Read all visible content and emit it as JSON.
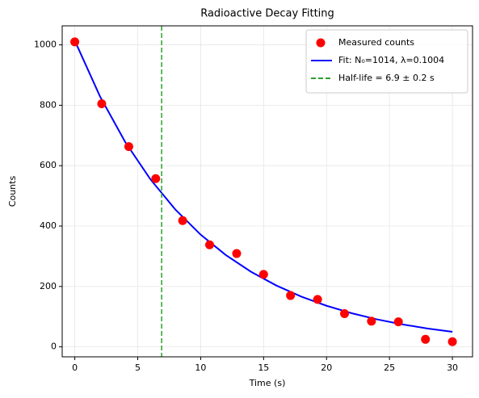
{
  "chart_data": {
    "type": "scatter",
    "title": "Radioactive Decay Fitting",
    "x_label": "Time (s)",
    "y_label": "Counts",
    "xlim": [
      -1,
      31.6
    ],
    "ylim": [
      -33,
      1063
    ],
    "xticks": [
      0,
      5,
      10,
      15,
      20,
      25,
      30
    ],
    "yticks": [
      0,
      200,
      400,
      600,
      800,
      1000
    ],
    "grid": true,
    "legend": "upper right",
    "series": [
      {
        "name": "Measured counts",
        "type": "scatter",
        "color": "#ff0000",
        "x": [
          0,
          2.14,
          4.29,
          6.43,
          8.57,
          10.71,
          12.86,
          15,
          17.14,
          19.29,
          21.43,
          23.57,
          25.71,
          27.86,
          30
        ],
        "values": [
          1010,
          805,
          663,
          557,
          418,
          338,
          309,
          240,
          170,
          157,
          110,
          85,
          83,
          25,
          17
        ]
      },
      {
        "name": "Fit: N₀=1014, λ=0.1004",
        "type": "line",
        "color": "#0000ff",
        "x": [
          0,
          2,
          4,
          6,
          8,
          10,
          12,
          14,
          16,
          18,
          20,
          22,
          24,
          26,
          28,
          30
        ],
        "values": [
          1014,
          829.6,
          678.7,
          555.2,
          454.2,
          371.5,
          304.0,
          248.7,
          203.4,
          166.4,
          136.1,
          111.4,
          91.1,
          74.6,
          61.0,
          49.9
        ]
      },
      {
        "name": "Half-life = 6.9 ± 0.2 s",
        "type": "vline",
        "color": "#2ca02c",
        "x": 6.9
      }
    ]
  }
}
